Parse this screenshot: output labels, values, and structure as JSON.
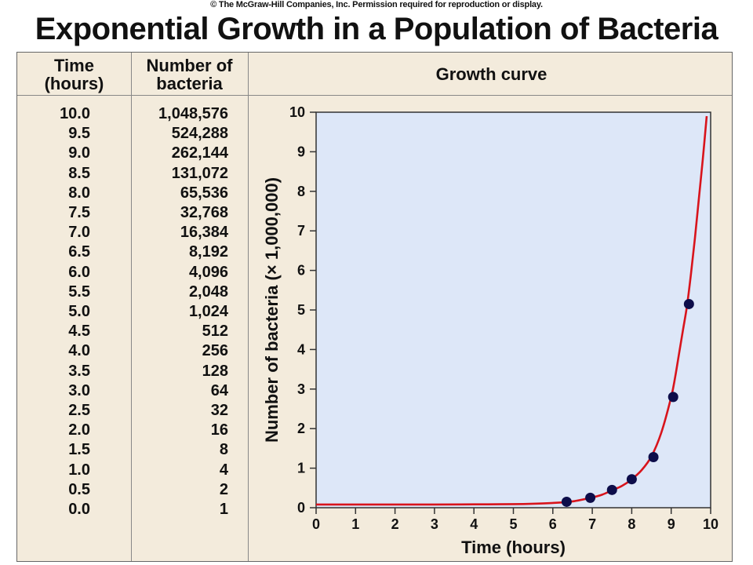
{
  "copyright": "© The McGraw-Hill Companies, Inc.  Permission required for reproduction or display.",
  "title": "Exponential Growth in a Population of Bacteria",
  "table": {
    "col1_header": [
      "Time",
      "(hours)"
    ],
    "col2_header": [
      "Number of",
      "bacteria"
    ],
    "rows": [
      {
        "time": "10.0",
        "count": "1,048,576"
      },
      {
        "time": "9.5",
        "count": "524,288"
      },
      {
        "time": "9.0",
        "count": "262,144"
      },
      {
        "time": "8.5",
        "count": "131,072"
      },
      {
        "time": "8.0",
        "count": "65,536"
      },
      {
        "time": "7.5",
        "count": "32,768"
      },
      {
        "time": "7.0",
        "count": "16,384"
      },
      {
        "time": "6.5",
        "count": "8,192"
      },
      {
        "time": "6.0",
        "count": "4,096"
      },
      {
        "time": "5.5",
        "count": "2,048"
      },
      {
        "time": "5.0",
        "count": "1,024"
      },
      {
        "time": "4.5",
        "count": "512"
      },
      {
        "time": "4.0",
        "count": "256"
      },
      {
        "time": "3.5",
        "count": "128"
      },
      {
        "time": "3.0",
        "count": "64"
      },
      {
        "time": "2.5",
        "count": "32"
      },
      {
        "time": "2.0",
        "count": "16"
      },
      {
        "time": "1.5",
        "count": "8"
      },
      {
        "time": "1.0",
        "count": "4"
      },
      {
        "time": "0.5",
        "count": "2"
      },
      {
        "time": "0.0",
        "count": "1"
      }
    ]
  },
  "chart_header": "Growth curve",
  "chart_data": {
    "type": "line",
    "title": "Growth curve",
    "xlabel": "Time (hours)",
    "ylabel": "Number of bacteria (× 1,000,000)",
    "xlim": [
      0,
      10
    ],
    "ylim": [
      0,
      10
    ],
    "xticks": [
      0,
      1,
      2,
      3,
      4,
      5,
      6,
      7,
      8,
      9,
      10
    ],
    "yticks": [
      0,
      1,
      2,
      3,
      4,
      5,
      6,
      7,
      8,
      9,
      10
    ],
    "grid": false,
    "curve": {
      "x": [
        0,
        1,
        2,
        3,
        4,
        5,
        5.5,
        6,
        6.5,
        7,
        7.25,
        7.5,
        7.75,
        8,
        8.25,
        8.5,
        8.75,
        9,
        9.1,
        9.2,
        9.3,
        9.4,
        9.5,
        9.6,
        9.7,
        9.8,
        9.9
      ],
      "y": [
        0.08,
        0.08,
        0.08,
        0.08,
        0.085,
        0.09,
        0.1,
        0.12,
        0.16,
        0.26,
        0.33,
        0.44,
        0.55,
        0.72,
        0.95,
        1.3,
        1.9,
        2.8,
        3.3,
        3.9,
        4.5,
        5.1,
        5.9,
        6.8,
        7.8,
        8.8,
        9.9
      ]
    },
    "points": {
      "x": [
        6.35,
        6.95,
        7.5,
        8.0,
        8.55,
        9.05,
        9.45
      ],
      "y": [
        0.15,
        0.25,
        0.45,
        0.72,
        1.28,
        2.8,
        5.15
      ]
    },
    "colors": {
      "curve": "#d8141c",
      "points": "#0d0d4a",
      "plot_background": "#dde7f8",
      "panel_background": "#f3ebdc"
    }
  }
}
